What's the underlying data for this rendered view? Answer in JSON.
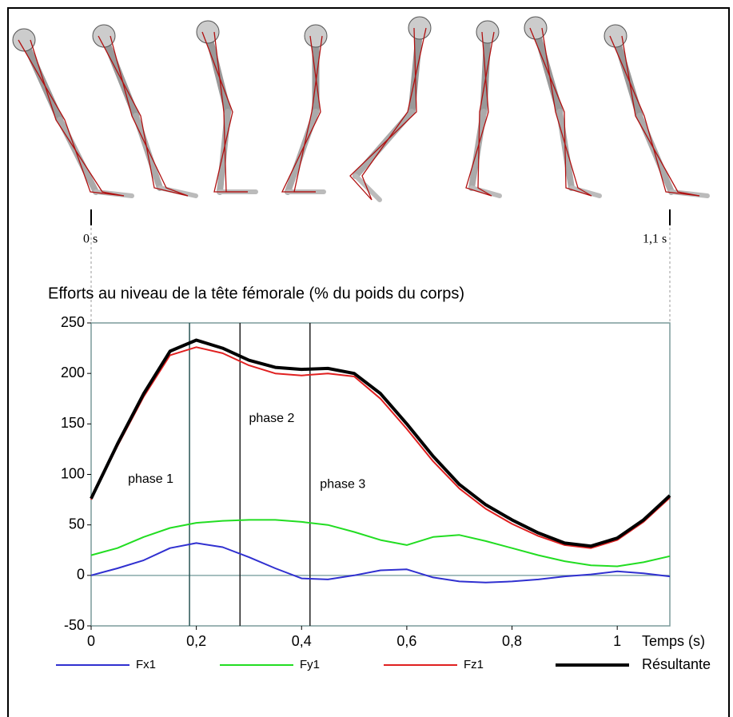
{
  "chart_data": {
    "type": "line",
    "title": "Efforts au niveau de la tête fémorale (% du poids du corps)",
    "x_label": "Temps (s)",
    "x": [
      0,
      0.05,
      0.1,
      0.15,
      0.2,
      0.25,
      0.3,
      0.35,
      0.4,
      0.45,
      0.5,
      0.55,
      0.6,
      0.65,
      0.7,
      0.75,
      0.8,
      0.85,
      0.9,
      0.95,
      1.0,
      1.05,
      1.1
    ],
    "series": [
      {
        "name": "Fx1",
        "color": "#3030d0",
        "values": [
          0,
          7,
          15,
          27,
          32,
          28,
          18,
          7,
          -3,
          -4,
          0,
          5,
          6,
          -2,
          -6,
          -7,
          -6,
          -4,
          -1,
          1,
          4,
          2,
          -1
        ]
      },
      {
        "name": "Fy1",
        "color": "#22dd22",
        "values": [
          20,
          27,
          38,
          47,
          52,
          54,
          55,
          55,
          53,
          50,
          43,
          35,
          30,
          38,
          40,
          34,
          27,
          20,
          14,
          10,
          9,
          13,
          19
        ]
      },
      {
        "name": "Fz1",
        "color": "#e02020",
        "values": [
          75,
          128,
          177,
          218,
          226,
          220,
          208,
          200,
          198,
          200,
          197,
          175,
          145,
          113,
          86,
          66,
          51,
          39,
          30,
          27,
          35,
          53,
          77
        ]
      },
      {
        "name": "Résultante",
        "color": "#000000",
        "values": [
          76,
          130,
          180,
          222,
          233,
          225,
          213,
          206,
          204,
          205,
          200,
          180,
          150,
          118,
          90,
          70,
          55,
          42,
          32,
          29,
          37,
          55,
          79
        ]
      }
    ],
    "xlim": [
      0,
      1.1
    ],
    "xticks": [
      0,
      {
        "value": 0.2,
        "label": "0,2"
      },
      {
        "value": 0.4,
        "label": "0,4"
      },
      {
        "value": 0.6,
        "label": "0,6"
      },
      {
        "value": 0.8,
        "label": "0,8"
      },
      1
    ],
    "ylim": [
      -50,
      250
    ],
    "yticks": [
      -50,
      0,
      50,
      100,
      150,
      200,
      250
    ],
    "phase_lines": [
      0.187,
      0.283,
      0.416
    ],
    "phase_labels": [
      {
        "text": "phase 1",
        "x": 0.07,
        "y": 95
      },
      {
        "text": "phase 2",
        "x": 0.3,
        "y": 155
      },
      {
        "text": "phase 3",
        "x": 0.435,
        "y": 90
      }
    ],
    "time_markers": [
      {
        "value": 0,
        "label": "0 s"
      },
      {
        "value": 1.1,
        "label": "1,1 s"
      }
    ],
    "legend": "bottom"
  }
}
